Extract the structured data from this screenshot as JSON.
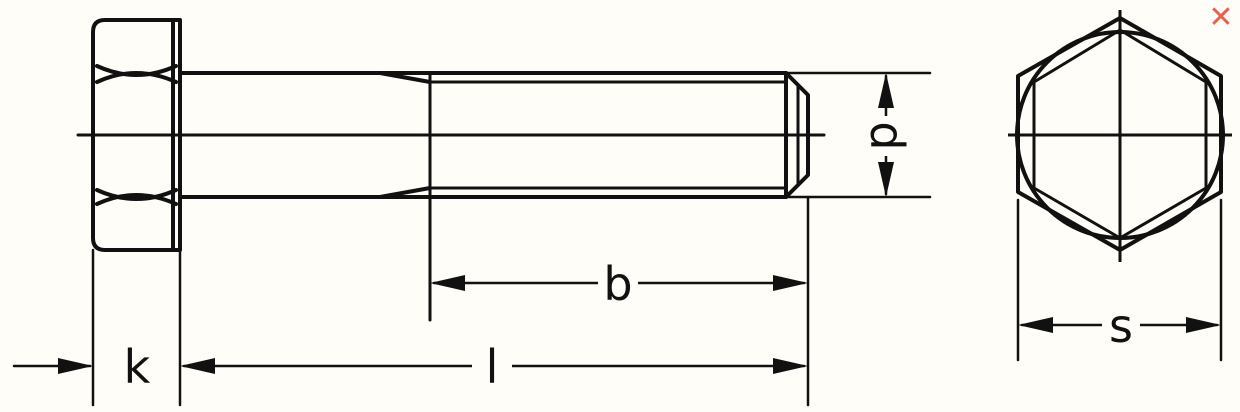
{
  "labels": {
    "k": "k",
    "l": "l",
    "b": "b",
    "d": "d",
    "s": "s"
  },
  "close_icon": "✕",
  "colors": {
    "ink": "#111111",
    "close": "#e8604c",
    "background": "#fffdf7"
  }
}
